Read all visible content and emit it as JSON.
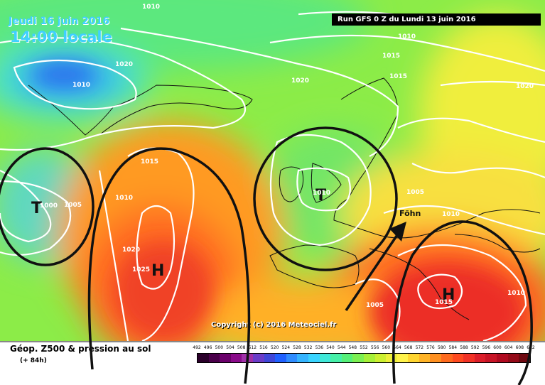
{
  "header": {
    "date": "Jeudi 16 juin 2016",
    "time": "14:00 locale",
    "run": "Run GFS 0 Z du Lundi 13 juin 2016"
  },
  "footer": {
    "title": "Géop. Z500 & pression au sol",
    "forecast": "(+ 84h)",
    "copyright": "Copyright (c) 2016 Meteociel.fr"
  },
  "scale": {
    "values": [
      "492",
      "496",
      "500",
      "504",
      "508",
      "512",
      "516",
      "520",
      "524",
      "528",
      "532",
      "536",
      "540",
      "544",
      "548",
      "552",
      "556",
      "560",
      "564",
      "568",
      "572",
      "576",
      "580",
      "584",
      "588",
      "592",
      "596",
      "600",
      "604",
      "608",
      "612"
    ],
    "colors": [
      "#2a002a",
      "#4a004a",
      "#6a006a",
      "#8a0a8a",
      "#a030a8",
      "#6a3cc8",
      "#3f46d8",
      "#2060ff",
      "#2f8cff",
      "#35b4ff",
      "#39d4ff",
      "#3fe8d8",
      "#46f0a8",
      "#56f078",
      "#7cf052",
      "#a6f038",
      "#ccf030",
      "#eef03a",
      "#fff34a",
      "#ffd530",
      "#ffb326",
      "#ff9020",
      "#ff6a1e",
      "#ff4a20",
      "#f23226",
      "#dc1e2a",
      "#c81426",
      "#b00a20",
      "#940a18",
      "#6e0810"
    ]
  },
  "map": {
    "centers": [
      {
        "letter": "T",
        "label": "1000"
      },
      {
        "letter": "H",
        "label": "1025"
      },
      {
        "letter": "T",
        "label": "1010"
      },
      {
        "letter": "H",
        "label": "1015"
      }
    ],
    "isobar_labels": [
      "1020",
      "1010",
      "1010",
      "1020",
      "1015",
      "1015",
      "1010",
      "1020",
      "1015",
      "1010",
      "1005",
      "1020",
      "1005",
      "1010",
      "1005",
      "1010"
    ],
    "annotation": "Föhn"
  },
  "colors": {
    "run_box_bg": "#000000",
    "date_text": "#3fd0ff",
    "isobar": "#ffffff",
    "sketch": "#111111"
  }
}
